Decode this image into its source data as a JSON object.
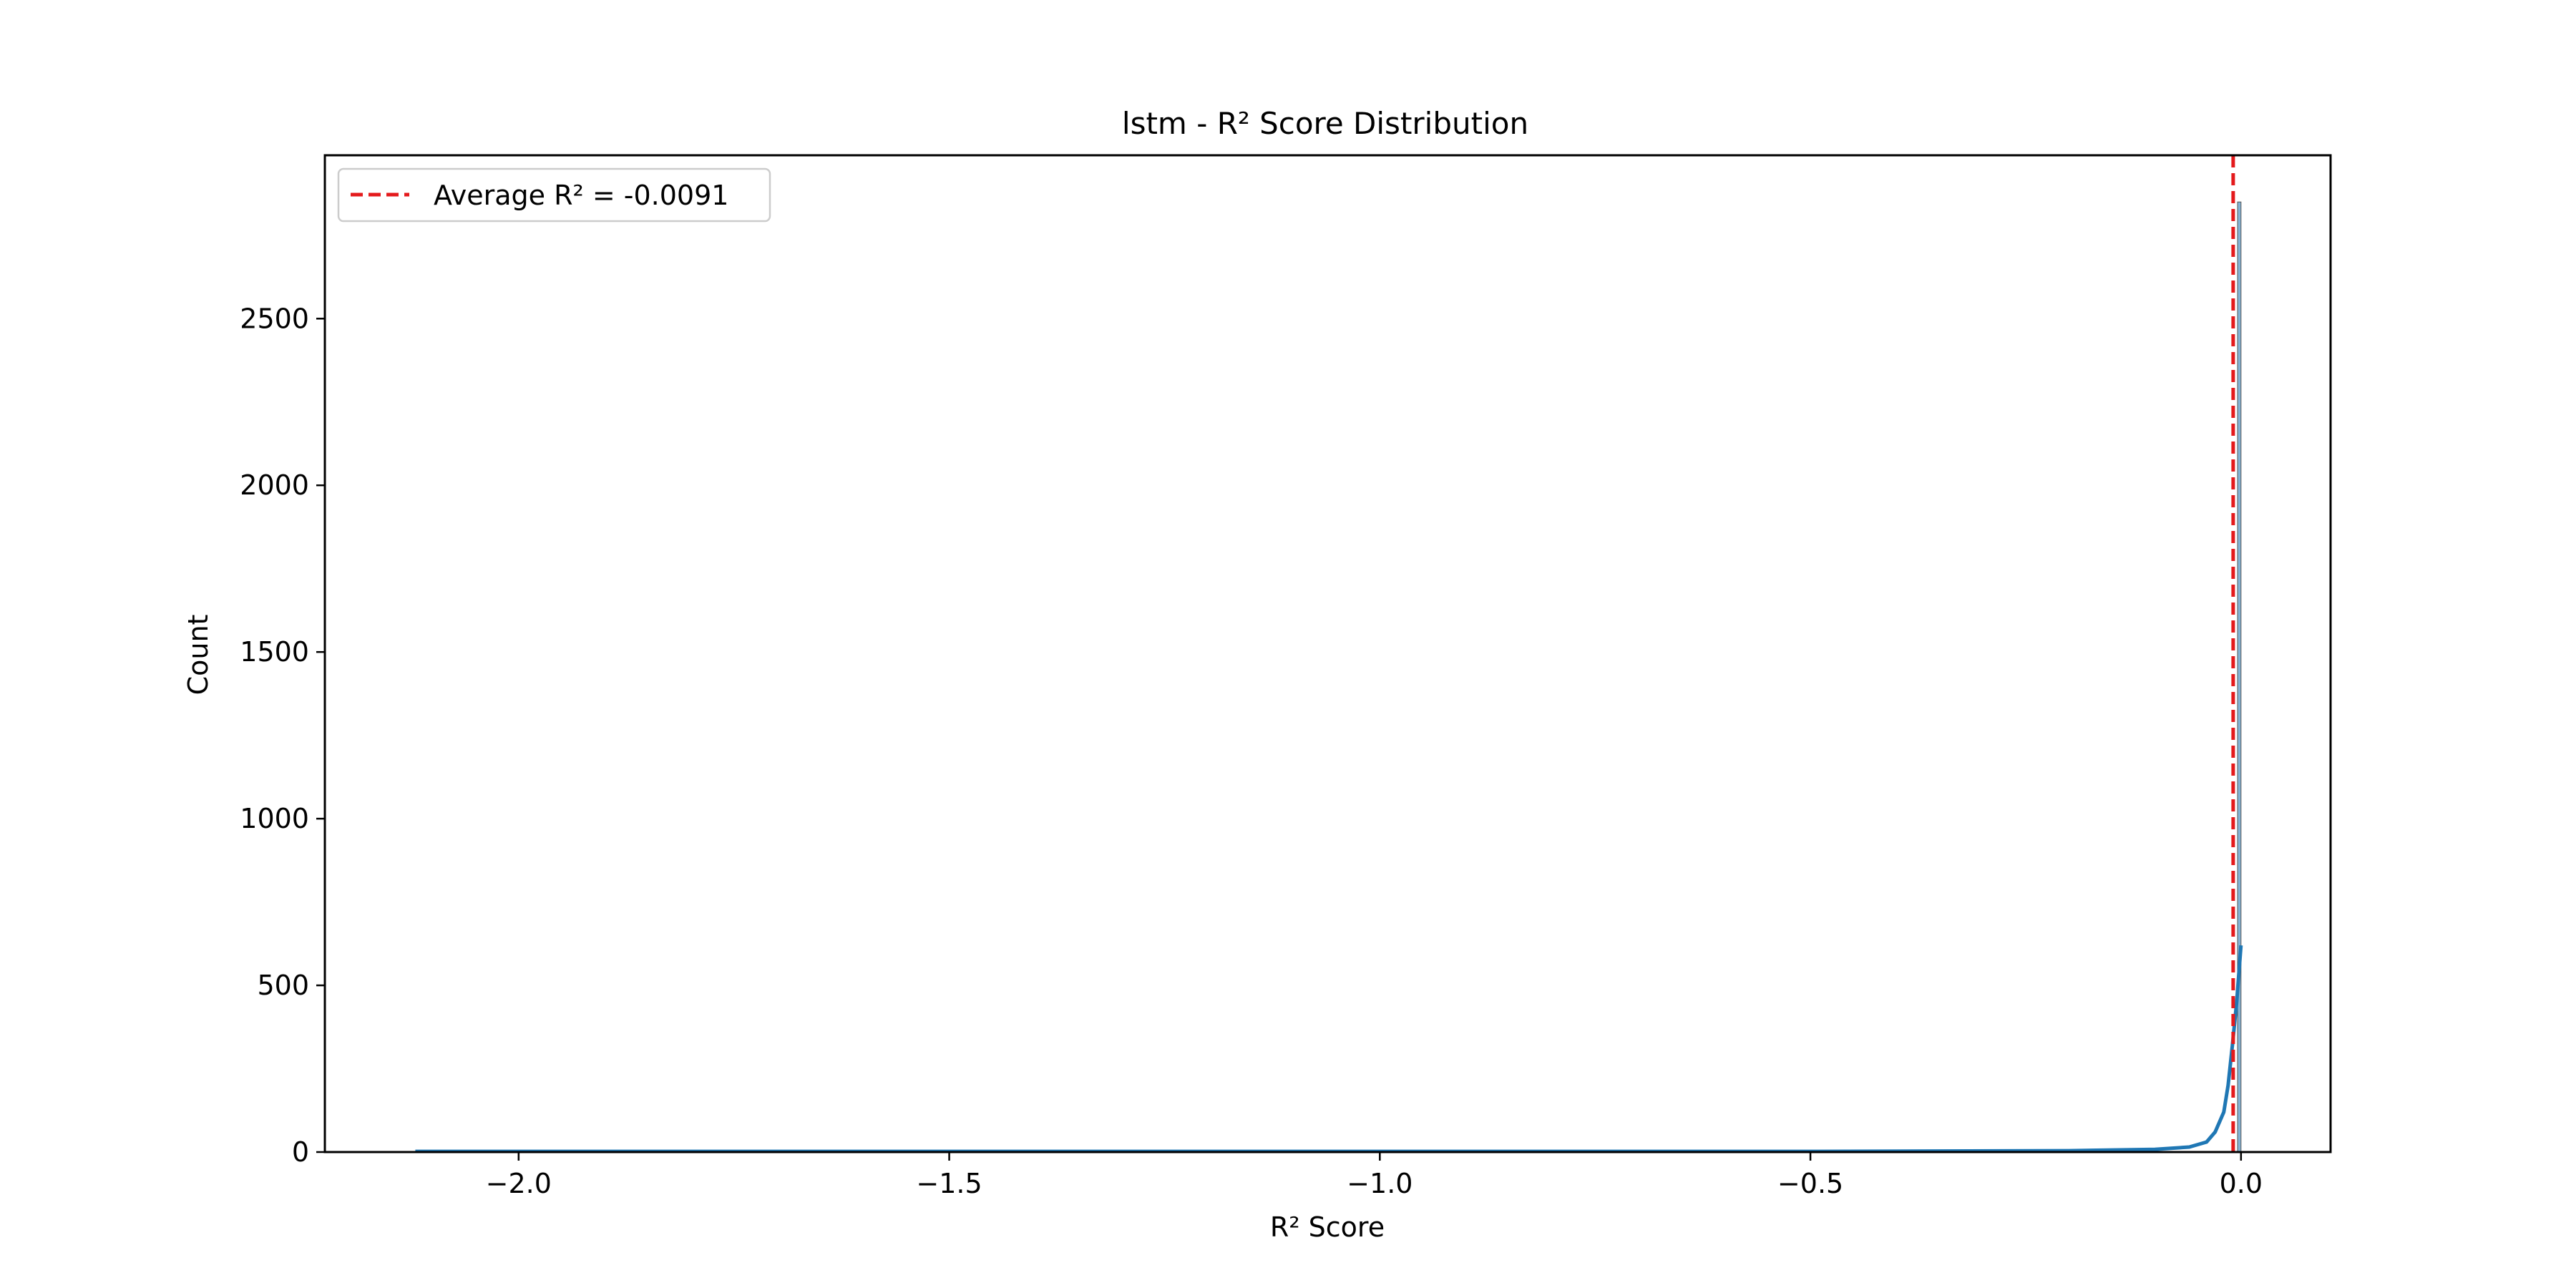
{
  "chart_data": {
    "type": "histogram",
    "title": "lstm - R² Score Distribution",
    "xlabel": "R² Score",
    "ylabel": "Count",
    "xlim": [
      -2.225,
      0.104
    ],
    "ylim": [
      0,
      2990
    ],
    "x_ticks": [
      -2.0,
      -1.5,
      -1.0,
      -0.5,
      0.0
    ],
    "x_tick_labels": [
      "−2.0",
      "−1.5",
      "−1.0",
      "−0.5",
      "0.0"
    ],
    "y_ticks": [
      0,
      500,
      1000,
      1500,
      2000,
      2500
    ],
    "y_tick_labels": [
      "0",
      "500",
      "1000",
      "1500",
      "2000",
      "2500"
    ],
    "grid": false,
    "legend": {
      "position": "top-left",
      "entries": [
        "Average R² = -0.0091"
      ]
    },
    "reference_line": {
      "x": -0.0091,
      "label": "Average R² = -0.0091",
      "color": "#e41a1c",
      "style": "dashed"
    },
    "histogram": {
      "color": "#1f77b4",
      "bars": [
        {
          "x0": -0.004,
          "x1": 0.0,
          "count": 2850
        }
      ]
    },
    "kde": {
      "color": "#1f77b4",
      "points": [
        [
          -2.12,
          2
        ],
        [
          -1.5,
          2
        ],
        [
          -1.0,
          2
        ],
        [
          -0.5,
          2
        ],
        [
          -0.2,
          4
        ],
        [
          -0.1,
          8
        ],
        [
          -0.06,
          15
        ],
        [
          -0.04,
          30
        ],
        [
          -0.03,
          60
        ],
        [
          -0.02,
          120
        ],
        [
          -0.015,
          200
        ],
        [
          -0.01,
          320
        ],
        [
          -0.005,
          450
        ],
        [
          0.0,
          620
        ]
      ]
    }
  }
}
